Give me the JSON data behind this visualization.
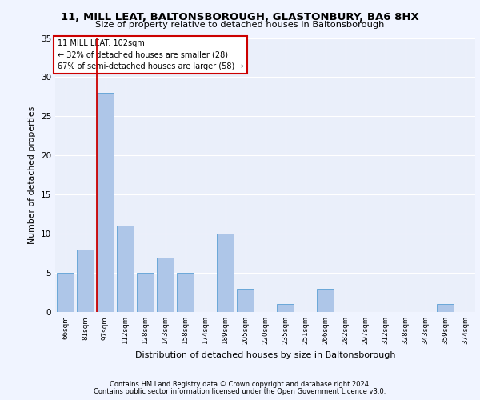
{
  "title1": "11, MILL LEAT, BALTONSBOROUGH, GLASTONBURY, BA6 8HX",
  "title2": "Size of property relative to detached houses in Baltonsborough",
  "xlabel": "Distribution of detached houses by size in Baltonsborough",
  "ylabel": "Number of detached properties",
  "categories": [
    "66sqm",
    "81sqm",
    "97sqm",
    "112sqm",
    "128sqm",
    "143sqm",
    "158sqm",
    "174sqm",
    "189sqm",
    "205sqm",
    "220sqm",
    "235sqm",
    "251sqm",
    "266sqm",
    "282sqm",
    "297sqm",
    "312sqm",
    "328sqm",
    "343sqm",
    "359sqm",
    "374sqm"
  ],
  "values": [
    5,
    8,
    28,
    11,
    5,
    7,
    5,
    0,
    10,
    3,
    0,
    1,
    0,
    3,
    0,
    0,
    0,
    0,
    0,
    1,
    0
  ],
  "bar_color": "#aec6e8",
  "bar_edge_color": "#5a9fd4",
  "vline_color": "#cc0000",
  "annotation_lines": [
    "11 MILL LEAT: 102sqm",
    "← 32% of detached houses are smaller (28)",
    "67% of semi-detached houses are larger (58) →"
  ],
  "annotation_box_color": "#cc0000",
  "ylim": [
    0,
    35
  ],
  "yticks": [
    0,
    5,
    10,
    15,
    20,
    25,
    30,
    35
  ],
  "background_color": "#eaeffa",
  "grid_color": "#ffffff",
  "fig_background": "#f0f4ff",
  "footer1": "Contains HM Land Registry data © Crown copyright and database right 2024.",
  "footer2": "Contains public sector information licensed under the Open Government Licence v3.0."
}
